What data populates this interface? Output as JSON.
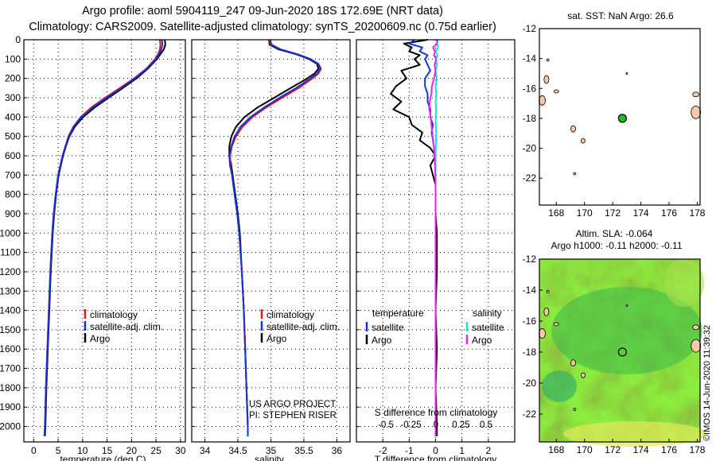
{
  "titles": {
    "line1": "Argo profile: aoml 5904119_247 09-Jun-2020 18S 172.69E (NRT data)",
    "line2": "Climatology: CARS2009. Satellite-adjusted climatology: synTS_20200609.nc (0.75d earlier)"
  },
  "colors": {
    "argo": "#000000",
    "climatology": "#ee1111",
    "satellite": "#1133dd",
    "sat_temp": "#1133dd",
    "sat_sal_diff": "#22dddd",
    "argo_sal_diff": "#ee22ee",
    "float_marker": "#22bb22",
    "land": "#f4c8a8"
  },
  "depth_axis": {
    "range": [
      0,
      2080
    ],
    "ticks": [
      0,
      100,
      200,
      300,
      400,
      500,
      600,
      700,
      800,
      900,
      1000,
      1100,
      1200,
      1300,
      1400,
      1500,
      1600,
      1700,
      1800,
      1900,
      2000
    ]
  },
  "chart_data": [
    {
      "type": "line",
      "id": "temperature",
      "xlabel": "temperature (deg C)",
      "ylabel": "depth",
      "xlim": [
        -2,
        31
      ],
      "ylim": [
        2080,
        0
      ],
      "xticks": [
        0,
        5,
        10,
        15,
        20,
        25,
        30
      ],
      "legend": [
        "climatology",
        "satellite-adj. clim.",
        "Argo"
      ],
      "series": [
        {
          "name": "Argo",
          "color": "#000000",
          "y": [
            0,
            25,
            50,
            75,
            100,
            150,
            200,
            250,
            300,
            350,
            400,
            450,
            500,
            550,
            600,
            700,
            800,
            900,
            1000,
            1200,
            1400,
            1600,
            1800,
            2000,
            2050
          ],
          "values": [
            26.8,
            26.9,
            26.6,
            25.9,
            25.2,
            23.3,
            21.0,
            18.2,
            15.3,
            12.5,
            10.1,
            8.4,
            7.3,
            6.6,
            6.0,
            5.1,
            4.6,
            4.2,
            3.9,
            3.5,
            3.2,
            2.9,
            2.6,
            2.4,
            2.3
          ]
        },
        {
          "name": "climatology",
          "color": "#ee1111",
          "y": [
            0,
            25,
            50,
            75,
            100,
            150,
            200,
            250,
            300,
            350,
            400,
            450,
            500,
            550,
            600,
            700,
            800,
            900,
            1000,
            1200,
            1400,
            1600,
            1800,
            2000,
            2050
          ],
          "values": [
            25.8,
            25.9,
            25.8,
            25.4,
            24.8,
            23.0,
            20.5,
            17.6,
            14.6,
            11.8,
            9.6,
            8.1,
            7.1,
            6.5,
            5.9,
            5.0,
            4.5,
            4.1,
            3.8,
            3.4,
            3.1,
            2.8,
            2.5,
            2.3,
            2.2
          ]
        },
        {
          "name": "satellite-adj. clim.",
          "color": "#1133dd",
          "y": [
            0,
            25,
            50,
            75,
            100,
            150,
            200,
            250,
            300,
            350,
            400,
            450,
            500,
            550,
            600,
            700,
            800,
            900,
            1000,
            1200,
            1400,
            1600,
            1800,
            2000,
            2050
          ],
          "values": [
            26.2,
            26.3,
            26.1,
            25.6,
            25.0,
            23.1,
            20.7,
            17.9,
            14.9,
            12.1,
            9.8,
            8.2,
            7.2,
            6.5,
            5.9,
            5.0,
            4.5,
            4.1,
            3.8,
            3.4,
            3.1,
            2.8,
            2.5,
            2.3,
            2.2
          ]
        }
      ]
    },
    {
      "type": "line",
      "id": "salinity",
      "xlabel": "salinity",
      "ylabel": "depth",
      "xlim": [
        33.8,
        36.2
      ],
      "ylim": [
        2080,
        0
      ],
      "xticks": [
        34,
        34.5,
        35,
        35.5,
        36
      ],
      "legend": [
        "climatology",
        "satellite-adj. clim.",
        "Argo"
      ],
      "annotations": [
        "US ARGO PROJECT",
        "PI: STEPHEN RISER"
      ],
      "series": [
        {
          "name": "Argo",
          "color": "#000000",
          "y": [
            0,
            25,
            50,
            75,
            100,
            125,
            150,
            175,
            200,
            250,
            300,
            350,
            400,
            450,
            500,
            550,
            600,
            650,
            700,
            800,
            900,
            1000,
            1200,
            1400,
            1600,
            1800,
            2000,
            2050
          ],
          "values": [
            34.97,
            34.98,
            35.12,
            35.38,
            35.58,
            35.7,
            35.72,
            35.66,
            35.55,
            35.3,
            35.05,
            34.8,
            34.6,
            34.47,
            34.4,
            34.37,
            34.37,
            34.4,
            34.42,
            34.46,
            34.5,
            34.53,
            34.56,
            34.59,
            34.61,
            34.63,
            34.65,
            34.65
          ]
        },
        {
          "name": "climatology",
          "color": "#ee1111",
          "y": [
            0,
            25,
            50,
            75,
            100,
            125,
            150,
            175,
            200,
            250,
            300,
            350,
            400,
            450,
            500,
            550,
            600,
            650,
            700,
            800,
            900,
            1000,
            1200,
            1400,
            1600,
            1800,
            2000,
            2050
          ],
          "values": [
            34.97,
            35.0,
            35.15,
            35.4,
            35.6,
            35.72,
            35.76,
            35.72,
            35.63,
            35.42,
            35.17,
            34.93,
            34.72,
            34.57,
            34.47,
            34.41,
            34.38,
            34.39,
            34.41,
            34.45,
            34.49,
            34.52,
            34.56,
            34.59,
            34.61,
            34.63,
            34.65,
            34.65
          ]
        },
        {
          "name": "satellite-adj. clim.",
          "color": "#1133dd",
          "y": [
            0,
            25,
            50,
            75,
            100,
            125,
            150,
            175,
            200,
            250,
            300,
            350,
            400,
            450,
            500,
            550,
            600,
            650,
            700,
            800,
            900,
            1000,
            1200,
            1400,
            1600,
            1800,
            2000,
            2050
          ],
          "values": [
            34.99,
            35.01,
            35.15,
            35.4,
            35.6,
            35.72,
            35.75,
            35.7,
            35.6,
            35.38,
            35.13,
            34.9,
            34.69,
            34.54,
            34.45,
            34.4,
            34.37,
            34.38,
            34.41,
            34.45,
            34.49,
            34.52,
            34.56,
            34.59,
            34.61,
            34.63,
            34.65,
            34.65
          ]
        }
      ]
    },
    {
      "type": "line",
      "id": "difference",
      "xlabel": "T difference from climatology",
      "ylabel": "depth",
      "xlim": [
        -3,
        3
      ],
      "ylim": [
        2080,
        0
      ],
      "xticks": [
        -2,
        -1,
        0,
        1,
        2
      ],
      "secondary_axis": {
        "label": "S difference from climatology",
        "ticks": [
          -0.5,
          -0.25,
          0,
          0.25,
          0.5
        ]
      },
      "legend_headers": [
        "temperature",
        "salinity"
      ],
      "legend": [
        "satellite",
        "Argo",
        "satellite",
        "Argo"
      ],
      "series": [
        {
          "name": "temperature Argo",
          "color": "#000000",
          "y": [
            0,
            20,
            40,
            60,
            80,
            100,
            130,
            160,
            200,
            240,
            280,
            320,
            360,
            400,
            440,
            480,
            520,
            560,
            600,
            650,
            700,
            750,
            800,
            900,
            1000,
            1200,
            1400,
            1600,
            1800,
            2000,
            2050
          ],
          "values": [
            -0.3,
            -1.2,
            -0.9,
            -1.0,
            -0.6,
            -0.8,
            -0.6,
            -1.3,
            -1.1,
            -1.5,
            -1.7,
            -1.3,
            -1.6,
            -1.0,
            -0.9,
            -0.5,
            -0.6,
            -0.2,
            0.0,
            -0.2,
            -0.1,
            0.0,
            0.0,
            0.0,
            0.05,
            0.05,
            0.0,
            0.05,
            0.0,
            0.05,
            0.05
          ]
        },
        {
          "name": "temperature satellite",
          "color": "#1133dd",
          "y": [
            0,
            20,
            40,
            60,
            80,
            100,
            130,
            160,
            200,
            240,
            280,
            320,
            360,
            400,
            440,
            480,
            520,
            560,
            600,
            650,
            700,
            750,
            800,
            900,
            1000,
            1200,
            1400,
            1600,
            1800,
            2000,
            2050
          ],
          "values": [
            -0.8,
            -1.0,
            -0.5,
            -0.6,
            -0.3,
            -0.4,
            -0.3,
            -0.2,
            -0.4,
            -0.4,
            -0.3,
            -0.3,
            -0.2,
            -0.2,
            -0.1,
            -0.15,
            -0.1,
            -0.05,
            -0.05,
            0.0,
            0.0,
            0.0,
            0.0,
            0.0,
            0.0,
            0.0,
            0.0,
            0.0,
            0.0,
            0.0,
            0.0
          ]
        },
        {
          "name": "salinity satellite",
          "color": "#22dddd",
          "y": [
            0,
            20,
            40,
            60,
            80,
            100,
            130,
            160,
            200,
            240,
            280,
            320,
            360,
            400,
            440,
            480,
            520,
            560,
            600,
            650,
            700,
            750,
            800,
            900,
            1000,
            1200,
            1400,
            1600,
            1800,
            2000,
            2050
          ],
          "values": [
            0.08,
            0.06,
            0.1,
            0.0,
            0.08,
            0.02,
            0.06,
            0.0,
            0.05,
            0.0,
            0.03,
            0.0,
            0.02,
            0.0,
            0.01,
            0.03,
            0.02,
            0.01,
            0.0,
            0.0,
            0.0,
            0.0,
            0.0,
            0.0,
            0.0,
            0.0,
            0.0,
            0.0,
            0.0,
            0.0,
            0.0
          ]
        },
        {
          "name": "salinity Argo",
          "color": "#ee22ee",
          "y": [
            0,
            20,
            40,
            60,
            80,
            100,
            130,
            160,
            200,
            240,
            280,
            320,
            360,
            400,
            440,
            480,
            520,
            560,
            600,
            650,
            700,
            750,
            800,
            900,
            1000,
            1200,
            1400,
            1600,
            1800,
            2000,
            2050
          ],
          "values": [
            0.05,
            0.06,
            -0.1,
            -0.02,
            -0.06,
            0.02,
            -0.04,
            0.0,
            -0.06,
            -0.14,
            -0.16,
            -0.22,
            -0.24,
            -0.18,
            -0.16,
            -0.12,
            -0.1,
            -0.06,
            -0.04,
            -0.02,
            -0.01,
            0.0,
            0.0,
            0.0,
            0.0,
            0.0,
            0.0,
            0.0,
            0.0,
            0.0,
            0.0
          ]
        }
      ]
    }
  ],
  "map_sst": {
    "title": "sat. SST: NaN Argo: 26.6",
    "lon_range": [
      166.8,
      178.2
    ],
    "lat_range": [
      -23.8,
      -12
    ],
    "xticks": [
      168,
      170,
      172,
      174,
      176,
      178
    ],
    "yticks": [
      -12,
      -14,
      -16,
      -18,
      -20,
      -22
    ],
    "float_position": {
      "lon": 172.69,
      "lat": -18.0
    }
  },
  "map_sla": {
    "title1": "Altim. SLA: -0.064",
    "title2": "Argo h1000: -0.11 h2000: -0.11",
    "lon_range": [
      166.8,
      178.2
    ],
    "lat_range": [
      -23.8,
      -12
    ],
    "xticks": [
      168,
      170,
      172,
      174,
      176,
      178
    ],
    "yticks": [
      -12,
      -14,
      -16,
      -18,
      -20,
      -22
    ],
    "float_position": {
      "lon": 172.69,
      "lat": -18.0
    }
  },
  "footer": {
    "stamp": "©IMOS 14-Jun-2020 11:39:32"
  }
}
